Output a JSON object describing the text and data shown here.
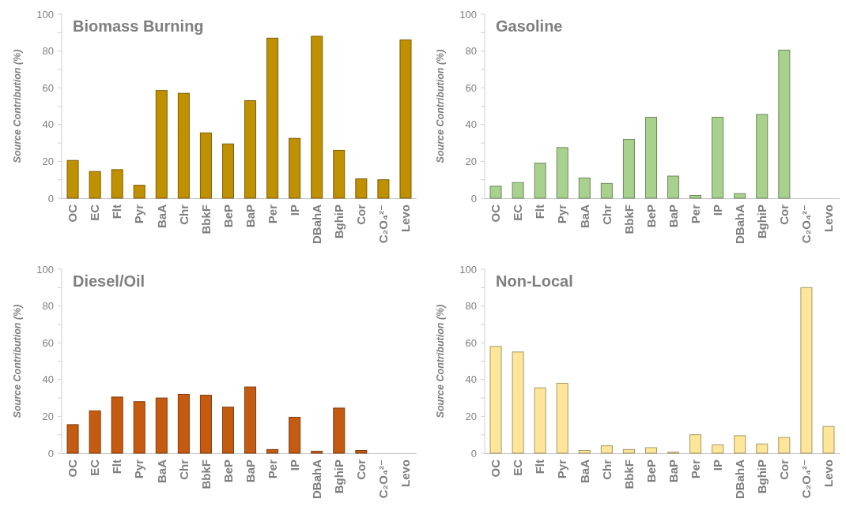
{
  "chart_data": [
    {
      "type": "bar",
      "title": "Biomass Burning",
      "ylabel": "Source Contribution (%)",
      "categories": [
        "OC",
        "EC",
        "Flt",
        "Pyr",
        "BaA",
        "Chr",
        "BbkF",
        "BeP",
        "BaP",
        "Per",
        "IP",
        "DBahA",
        "BghiP",
        "Cor",
        "C₂O₄²⁻",
        "Levo"
      ],
      "values": [
        20.5,
        14.5,
        15.5,
        7,
        58.5,
        57,
        35.5,
        29.5,
        53,
        87,
        32.5,
        88,
        26,
        10.5,
        10,
        86
      ],
      "color": "#bf9000",
      "ylim": [
        0,
        100
      ],
      "yticks": [
        0,
        {
          "value": 10,
          "label": null
        },
        20,
        {
          "value": 30,
          "label": null
        },
        40,
        {
          "value": 50,
          "label": null
        },
        60,
        {
          "value": 70,
          "label": null
        },
        80,
        {
          "value": 90,
          "label": null
        },
        100
      ],
      "grid": false
    },
    {
      "type": "bar",
      "title": "Gasoline",
      "ylabel": "Source Contribution (%)",
      "categories": [
        "OC",
        "EC",
        "Flt",
        "Pyr",
        "BaA",
        "Chr",
        "BbkF",
        "BeP",
        "BaP",
        "Per",
        "IP",
        "DBahA",
        "BghiP",
        "Cor",
        "C₂O₄²⁻",
        "Levo"
      ],
      "values": [
        6.5,
        8.5,
        19,
        27.5,
        11,
        8,
        32,
        44,
        12,
        1.5,
        44,
        2.5,
        45.5,
        80.5,
        0,
        0
      ],
      "color": "#a9d18e",
      "ylim": [
        0,
        100
      ],
      "yticks": [
        0,
        {
          "value": 10,
          "label": null
        },
        20,
        {
          "value": 30,
          "label": null
        },
        40,
        {
          "value": 50,
          "label": null
        },
        60,
        {
          "value": 70,
          "label": null
        },
        80,
        {
          "value": 90,
          "label": null
        },
        100
      ],
      "grid": false
    },
    {
      "type": "bar",
      "title": "Diesel/Oil",
      "ylabel": "Source Contribution (%)",
      "categories": [
        "OC",
        "EC",
        "Flt",
        "Pyr",
        "BaA",
        "Chr",
        "BbkF",
        "BeP",
        "BaP",
        "Per",
        "IP",
        "DBahA",
        "BghiP",
        "Cor",
        "C₂O₄²⁻",
        "Levo"
      ],
      "values": [
        15.5,
        23,
        30.5,
        28,
        30,
        32,
        31.5,
        25,
        36,
        2,
        19.5,
        1,
        24.5,
        1.5,
        0,
        0
      ],
      "color": "#c55a11",
      "ylim": [
        0,
        100
      ],
      "yticks": [
        0,
        {
          "value": 10,
          "label": null
        },
        20,
        {
          "value": 30,
          "label": null
        },
        40,
        {
          "value": 50,
          "label": null
        },
        60,
        {
          "value": 70,
          "label": null
        },
        80,
        {
          "value": 90,
          "label": null
        },
        100
      ],
      "grid": false
    },
    {
      "type": "bar",
      "title": "Non-Local",
      "ylabel": "Source Contribution (%)",
      "categories": [
        "OC",
        "EC",
        "Flt",
        "Pyr",
        "BaA",
        "Chr",
        "BbkF",
        "BeP",
        "BaP",
        "Per",
        "IP",
        "DBahA",
        "BghiP",
        "Cor",
        "C₂O₄²⁻",
        "Levo"
      ],
      "values": [
        58,
        55,
        35.5,
        38,
        1.5,
        4,
        2,
        3,
        0.5,
        10,
        4.5,
        9.5,
        5,
        8.5,
        90,
        14.5
      ],
      "color": "#ffe699",
      "ylim": [
        0,
        100
      ],
      "yticks": [
        0,
        {
          "value": 10,
          "label": null
        },
        20,
        {
          "value": 30,
          "label": null
        },
        40,
        {
          "value": 50,
          "label": null
        },
        60,
        {
          "value": 70,
          "label": null
        },
        80,
        {
          "value": 90,
          "label": null
        },
        100
      ],
      "grid": false
    }
  ]
}
